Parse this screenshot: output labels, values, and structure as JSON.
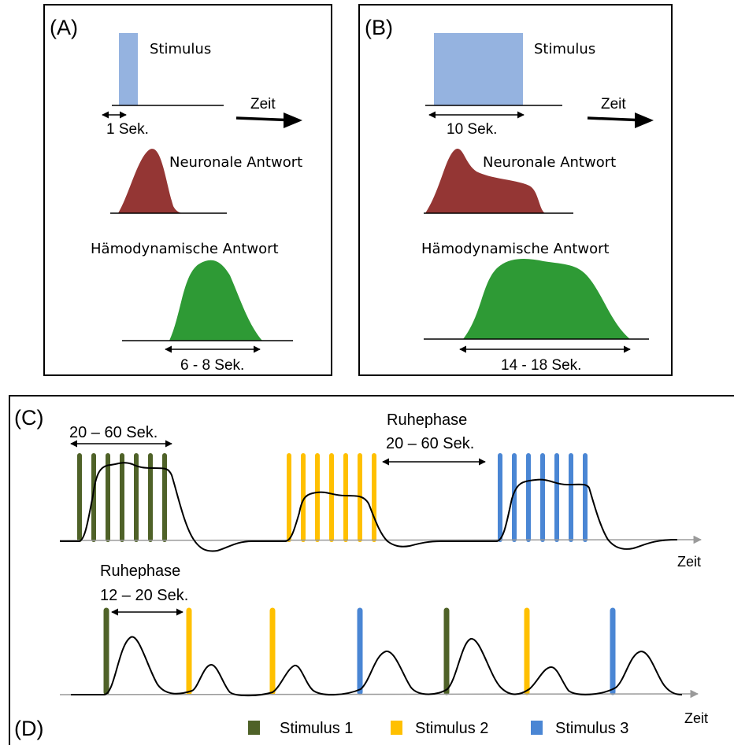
{
  "panel_a": {
    "label": "(A)",
    "stimulus": "Stimulus",
    "time": "Zeit",
    "stim_duration": "1 Sek.",
    "neuronal": "Neuronale Antwort",
    "hemodynamic": "Hämodynamische Antwort",
    "hrf_duration": "6 - 8 Sek."
  },
  "panel_b": {
    "label": "(B)",
    "stimulus": "Stimulus",
    "time": "Zeit",
    "stim_duration": "10 Sek.",
    "neuronal": "Neuronale Antwort",
    "hemodynamic": "Hämodynamische Antwort",
    "hrf_duration": "14 - 18 Sek."
  },
  "panel_c": {
    "label": "(C)",
    "block_duration": "20 – 60 Sek.",
    "rest_title": "Ruhephase",
    "rest_duration": "20 – 60 Sek.",
    "time": "Zeit"
  },
  "panel_d": {
    "label": "(D)",
    "rest_title": "Ruhephase",
    "rest_duration": "12 – 20 Sek.",
    "time": "Zeit"
  },
  "legend": [
    {
      "label": "Stimulus 1",
      "color": "#4f6228"
    },
    {
      "label": "Stimulus 2",
      "color": "#ffc000"
    },
    {
      "label": "Stimulus 3",
      "color": "#4a86d4"
    }
  ],
  "colors": {
    "stimulus_ab": "#95b3e0",
    "neuronal": "#943634",
    "hemodynamic": "#2e9a35",
    "axis_gray": "#9a9a9a"
  }
}
